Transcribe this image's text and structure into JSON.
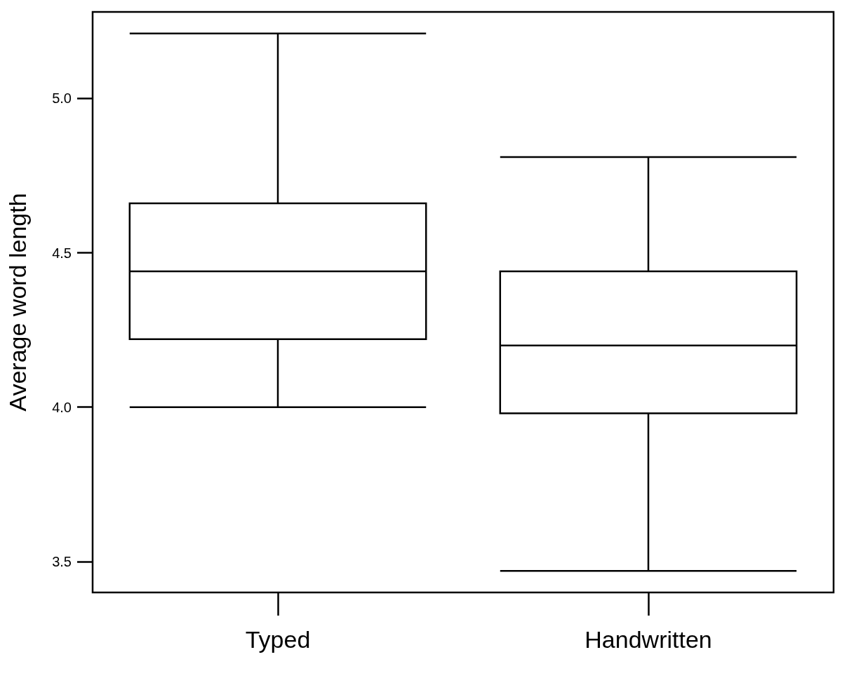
{
  "chart_data": {
    "type": "box",
    "ylabel": "Average word length",
    "categories": [
      "Typed",
      "Handwritten"
    ],
    "boxes": [
      {
        "low": 4.0,
        "q1": 4.22,
        "median": 4.44,
        "q3": 4.66,
        "high": 5.21
      },
      {
        "low": 3.47,
        "q1": 3.98,
        "median": 4.2,
        "q3": 4.44,
        "high": 4.81
      }
    ],
    "color": "#000000",
    "ylim": [
      3.4,
      5.28
    ],
    "yticks": [
      3.5,
      {
        "value": 4,
        "label": "4.0"
      },
      4.5,
      {
        "value": 5,
        "label": "5.0"
      }
    ],
    "grid": false
  }
}
